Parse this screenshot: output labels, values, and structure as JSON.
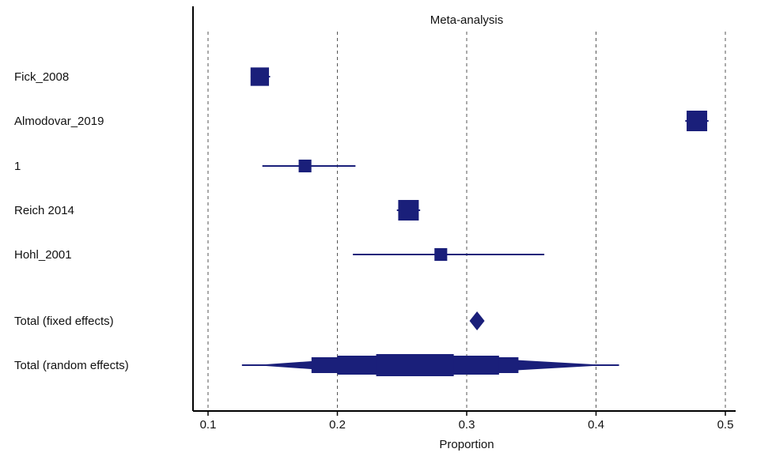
{
  "chart_data": {
    "type": "forest",
    "title": "Meta-analysis",
    "xlabel": "Proportion",
    "xlim": [
      0.09,
      0.51
    ],
    "xticks": [
      "0.1",
      "0.2",
      "0.3",
      "0.4",
      "0.5"
    ],
    "grid": "vertical-dashed",
    "marker_color": "#1a1f7a",
    "studies": [
      {
        "label": "Fick_2008",
        "estimate": 0.14,
        "ci": [
          0.133,
          0.148
        ],
        "weight": 0.85
      },
      {
        "label": "Almodovar_2019",
        "estimate": 0.478,
        "ci": [
          0.469,
          0.487
        ],
        "weight": 1.0
      },
      {
        "label": "1",
        "estimate": 0.175,
        "ci": [
          0.142,
          0.214
        ],
        "weight": 0.45
      },
      {
        "label": "Reich 2014",
        "estimate": 0.255,
        "ci": [
          0.246,
          0.264
        ],
        "weight": 1.0
      },
      {
        "label": "Hohl_2001",
        "estimate": 0.28,
        "ci": [
          0.212,
          0.36
        ],
        "weight": 0.45
      }
    ],
    "pooled": [
      {
        "label": "Total (fixed effects)",
        "estimate": 0.308,
        "ci": [
          0.304,
          0.312
        ]
      },
      {
        "label": "Total (random effects)",
        "estimate": 0.258,
        "ci": [
          0.136,
          0.408
        ]
      }
    ]
  }
}
